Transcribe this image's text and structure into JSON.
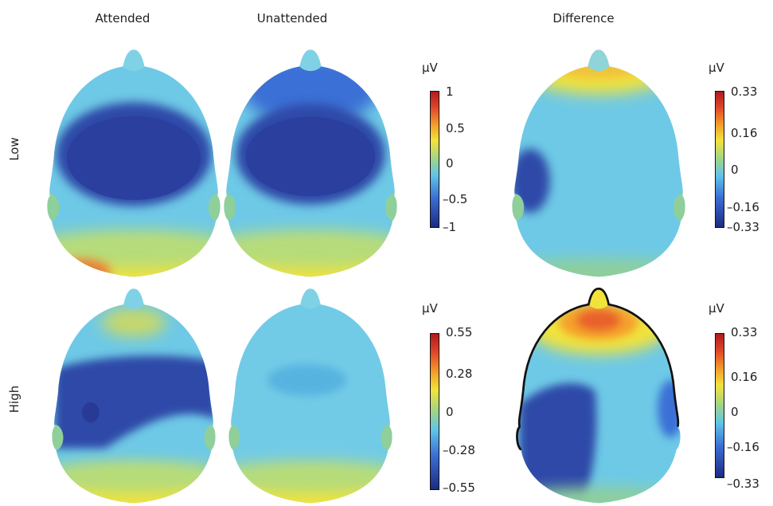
{
  "columns": {
    "attended": "Attended",
    "unattended": "Unattended",
    "difference": "Difference"
  },
  "rows": {
    "low": "Low",
    "high": "High"
  },
  "colorbars": {
    "low_main": {
      "unit": "µV",
      "ticks": [
        "1",
        "0.5",
        "0",
        "–0.5",
        "–1"
      ]
    },
    "low_diff": {
      "unit": "µV",
      "ticks": [
        "0.33",
        "0.16",
        "0",
        "–0.16",
        "–0.33"
      ]
    },
    "high_main": {
      "unit": "µV",
      "ticks": [
        "0.55",
        "0.28",
        "0",
        "–0.28",
        "–0.55"
      ]
    },
    "high_diff": {
      "unit": "µV",
      "ticks": [
        "0.33",
        "0.16",
        "0",
        "–0.16",
        "–0.33"
      ]
    }
  },
  "colors": {
    "deep_blue": "#2a3f9e",
    "blue": "#3b6fd6",
    "cyan": "#5fc4e8",
    "light_cyan": "#7fd2e6",
    "green": "#9fd48a",
    "yellow": "#f2e33a",
    "orange": "#f4a02a",
    "red": "#e0452a"
  }
}
